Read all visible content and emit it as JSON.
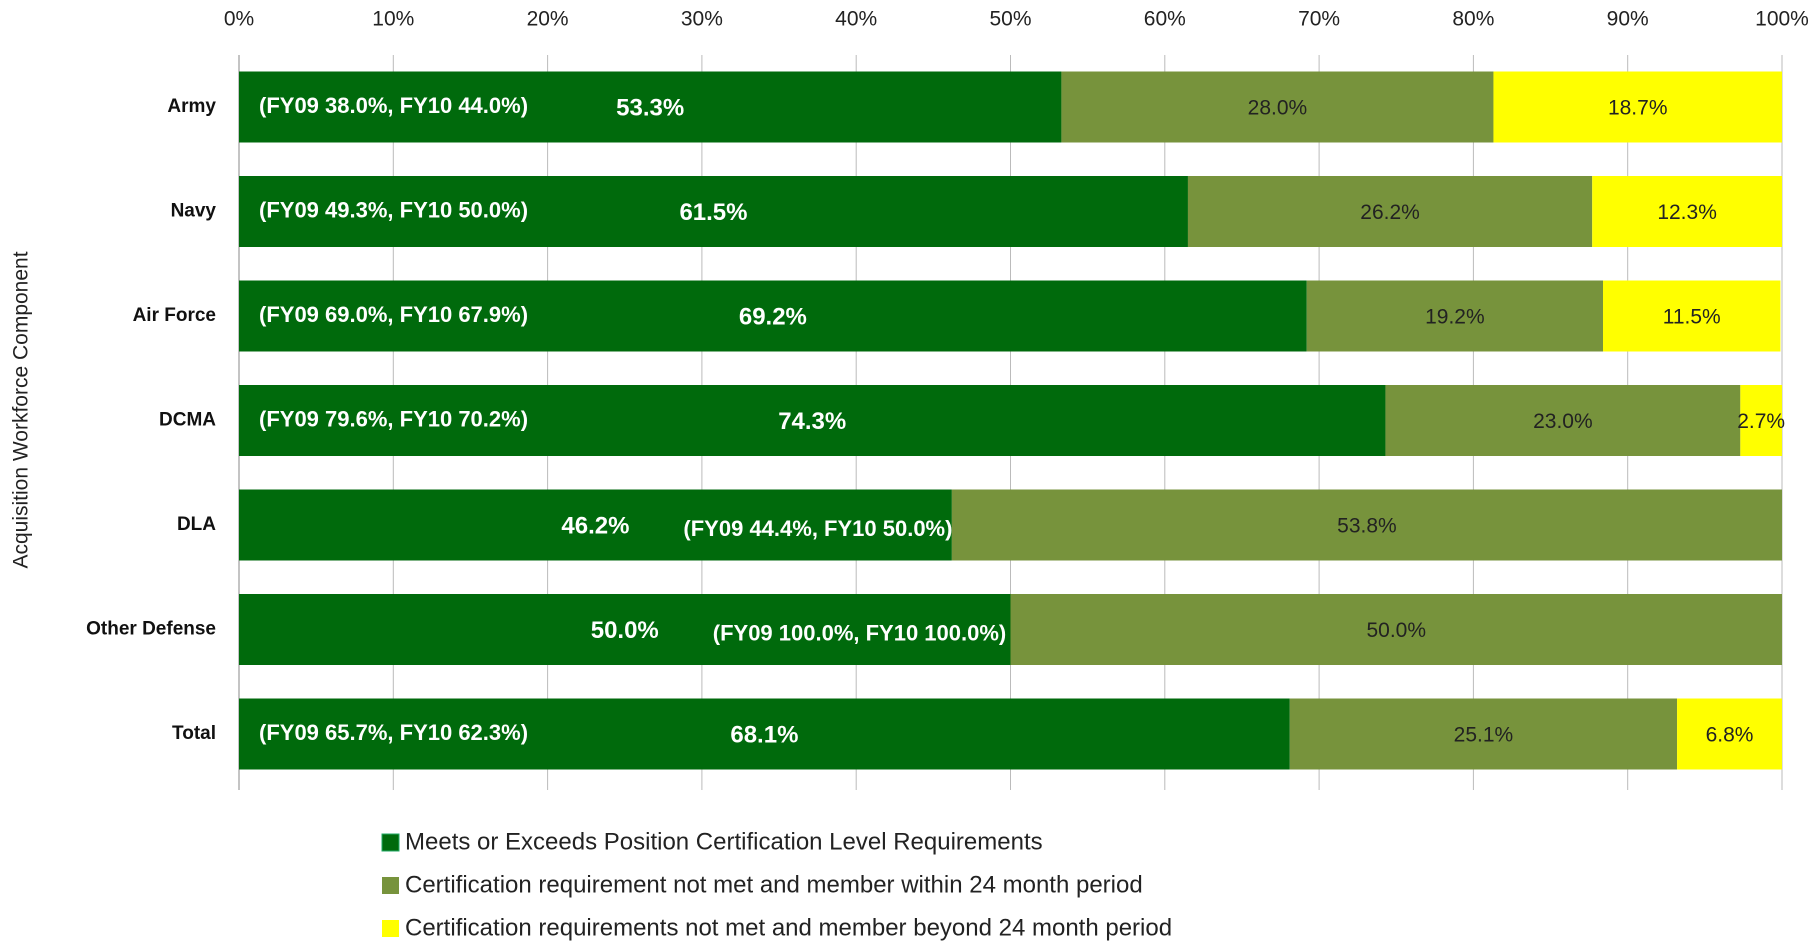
{
  "chart_data": {
    "type": "stacked-bar-horizontal",
    "y_axis_label": "Acquisition Workforce Component",
    "categories": [
      "Army",
      "Navy",
      "Air Force",
      "DCMA",
      "DLA",
      "Other Defense",
      "Total"
    ],
    "series": [
      {
        "name": "Meets or Exceeds Position Certification Level Requirements",
        "color": "#006A0C",
        "values": [
          53.3,
          61.5,
          69.2,
          74.3,
          46.2,
          50.0,
          68.1
        ],
        "value_labels": [
          "53.3%",
          "61.5%",
          "69.2%",
          "74.3%",
          "46.2%",
          "50.0%",
          "68.1%"
        ]
      },
      {
        "name": "Certification requirement not met and member within 24 month period",
        "color": "#77933C",
        "values": [
          28.0,
          26.2,
          19.2,
          23.0,
          53.8,
          50.0,
          25.1
        ],
        "value_labels": [
          "28.0%",
          "26.2%",
          "19.2%",
          "23.0%",
          "53.8%",
          "50.0%",
          "25.1%"
        ]
      },
      {
        "name": "Certification requirements not met and member beyond 24 month period",
        "color": "#FFFF00",
        "values": [
          18.7,
          12.3,
          11.5,
          2.7,
          null,
          null,
          6.8
        ],
        "value_labels": [
          "18.7%",
          "12.3%",
          "11.5%",
          "2.7%",
          null,
          null,
          "6.8%"
        ]
      }
    ],
    "annotations": [
      "(FY09 38.0%, FY10 44.0%)",
      "(FY09 49.3%, FY10 50.0%)",
      "(FY09 69.0%, FY10 67.9%)",
      "(FY09 79.6%, FY10 70.2%)",
      "(FY09 44.4%, FY10 50.0%)",
      "(FY09 100.0%, FY10 100.0%)",
      "(FY09 65.7%, FY10 62.3%)"
    ],
    "xlim": [
      0,
      100
    ],
    "xticks": [
      {
        "value": 0,
        "label": "0%"
      },
      {
        "value": 10,
        "label": "10%"
      },
      {
        "value": 20,
        "label": "20%"
      },
      {
        "value": 30,
        "label": "30%"
      },
      {
        "value": 40,
        "label": "40%"
      },
      {
        "value": 50,
        "label": "50%"
      },
      {
        "value": 60,
        "label": "60%"
      },
      {
        "value": 70,
        "label": "70%"
      },
      {
        "value": 80,
        "label": "80%"
      },
      {
        "value": 90,
        "label": "90%"
      },
      {
        "value": 100,
        "label": "100%"
      }
    ],
    "grid": true,
    "legend_position": "bottom"
  }
}
